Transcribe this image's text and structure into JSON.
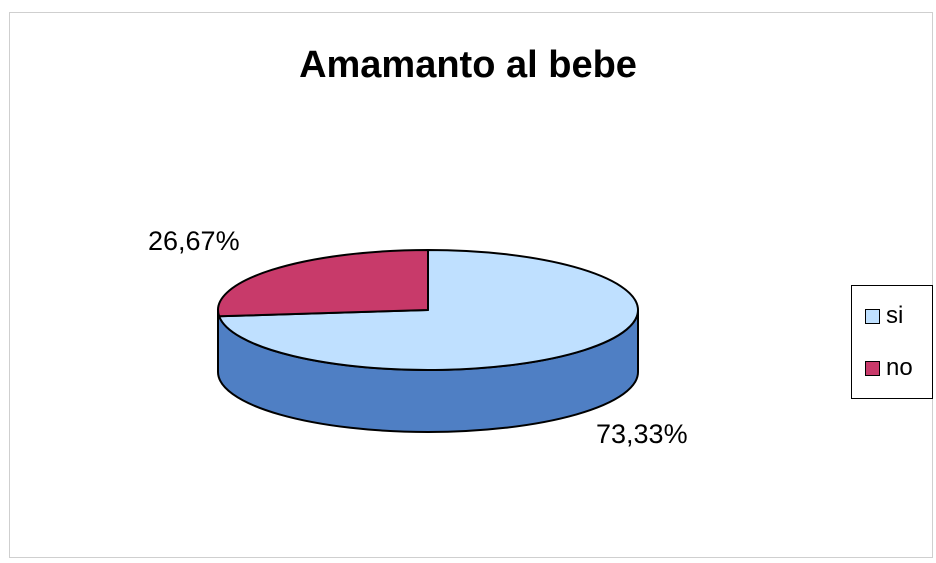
{
  "chart_data": {
    "type": "pie",
    "title": "Amamanto al bebe",
    "categories": [
      "si",
      "no"
    ],
    "values": [
      73.33,
      26.67
    ],
    "value_labels": [
      "73,33%",
      "26,67%"
    ],
    "colors": {
      "si": "#bfe0ff",
      "si_side": "#4f7fc4",
      "no": "#c83a6a",
      "no_side": "#8a1f45"
    },
    "style": "3d",
    "legend_position": "right",
    "legend": [
      {
        "label": "si",
        "color": "#bfe0ff"
      },
      {
        "label": "no",
        "color": "#c83a6a"
      }
    ]
  }
}
